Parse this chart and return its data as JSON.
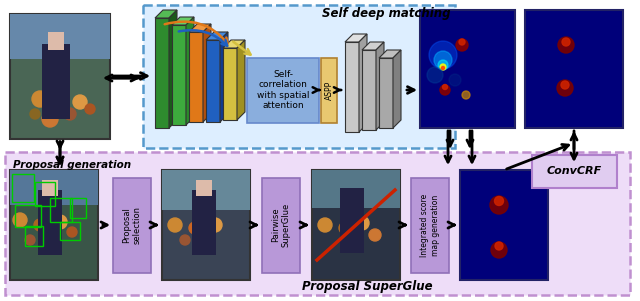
{
  "bg_color": "#ffffff",
  "self_deep_matching_label": "Self deep matching",
  "proposal_superglue_label": "Proposal SuperGlue",
  "proposal_generation_label": "Proposal generation",
  "proposal_selection_label": "Proposal\nselection",
  "pairwise_superglue_label": "Pairwise\nSuperGlue",
  "integrated_score_label": "Integrated score\nmap generation",
  "convcrf_label": "ConvCRF",
  "self_corr_label": "Self-\ncorrelation\nwith spatial\nattention",
  "aspp_label": "ASPP",
  "sdm_box_color": "#5599cc",
  "sdm_box_fill": "#ddeeff",
  "psg_box_color": "#c090d0",
  "psg_box_fill": "#eeddf8",
  "pg_label_fill": "#ddc8f0",
  "conv_colors": [
    "#2d8a2d",
    "#3daa3d",
    "#e07818",
    "#2060c0",
    "#d4c040"
  ],
  "conv_light": [
    "#55bb55",
    "#66cc66",
    "#f09840",
    "#4488dd",
    "#e8d870"
  ],
  "conv_dark": [
    "#1a5a1a",
    "#2a8a2a",
    "#b05010",
    "#103a90",
    "#a09020"
  ],
  "decoder_colors": [
    "#c0c0c0",
    "#b0b0b0",
    "#a0a0a0"
  ],
  "self_corr_fill": "#8aaedd",
  "aspp_fill": "#e8c870",
  "proposal_sel_fill": "#b898d8",
  "pairwise_fill": "#b898d8",
  "integrated_fill": "#b898d8",
  "convcrf_fill": "#e0ccf0",
  "heatmap_bg": "#00007a",
  "output_bg": "#00007a"
}
